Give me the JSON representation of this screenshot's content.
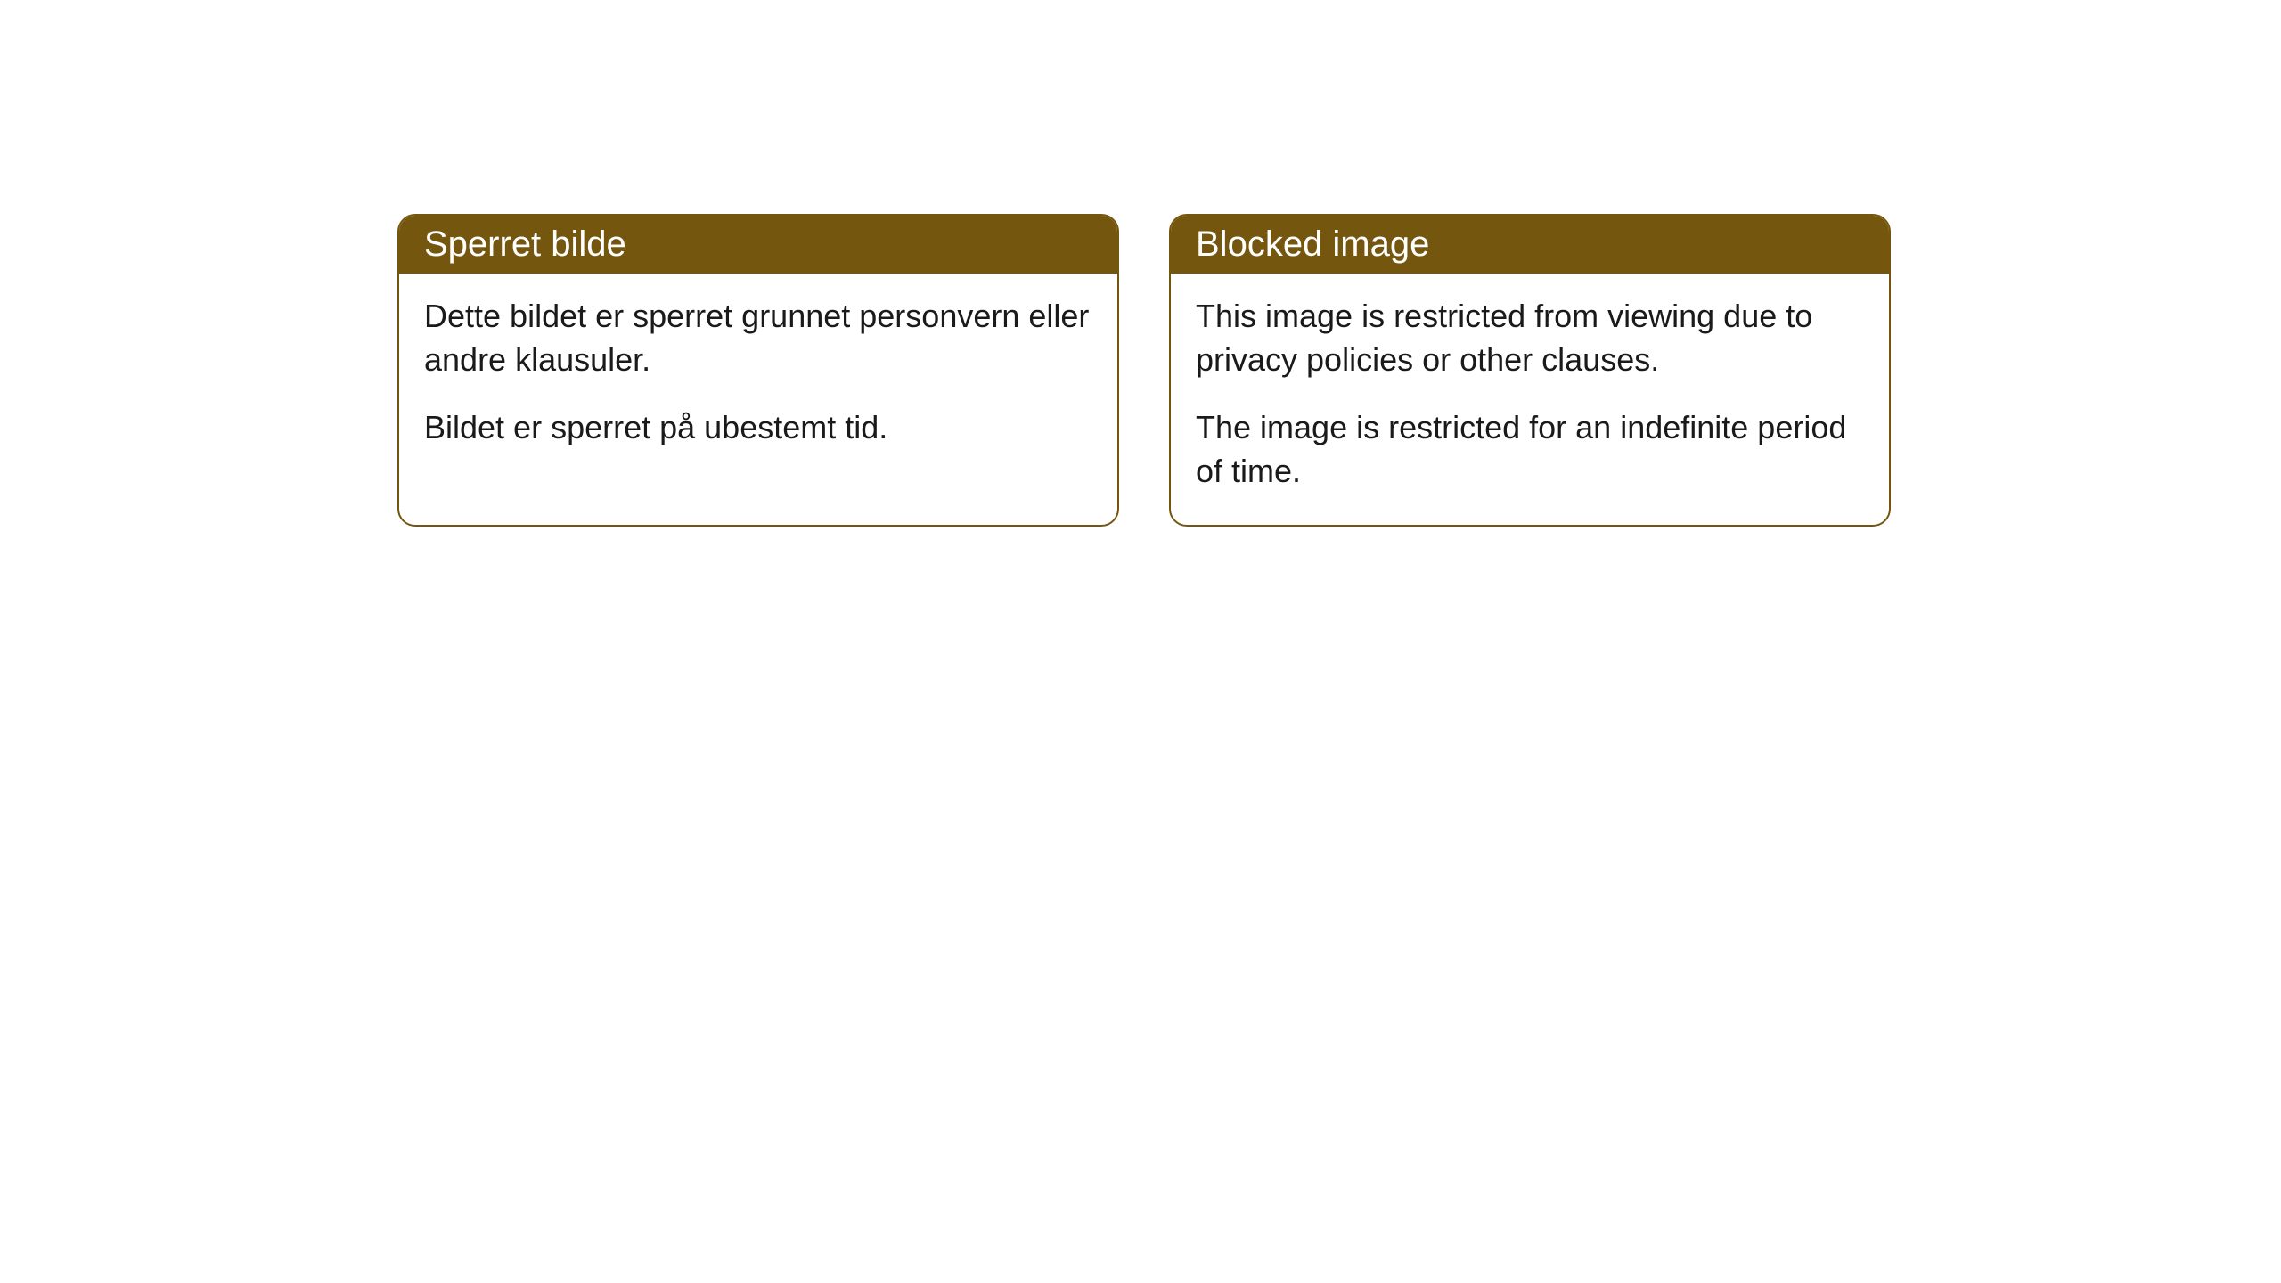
{
  "cards": [
    {
      "title": "Sperret bilde",
      "paragraph1": "Dette bildet er sperret grunnet personvern eller andre klausuler.",
      "paragraph2": "Bildet er sperret på ubestemt tid."
    },
    {
      "title": "Blocked image",
      "paragraph1": "This image is restricted from viewing due to privacy policies or other clauses.",
      "paragraph2": "The image is restricted for an indefinite period of time."
    }
  ],
  "styling": {
    "header_background": "#75560e",
    "header_text_color": "#ffffff",
    "border_color": "#75560e",
    "body_background": "#ffffff",
    "body_text_color": "#1a1a1a",
    "border_radius": 20,
    "title_fontsize": 40,
    "body_fontsize": 36
  }
}
